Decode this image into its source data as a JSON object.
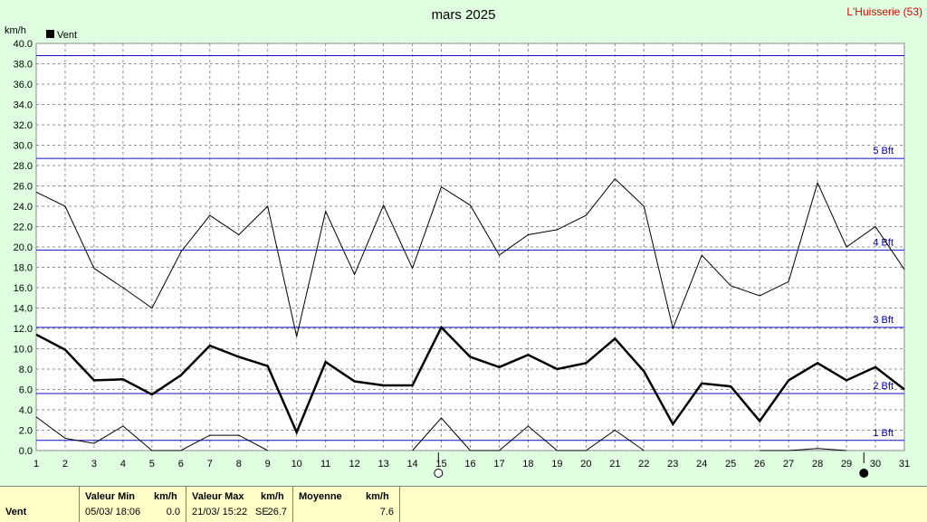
{
  "header": {
    "title": "mars 2025",
    "station": "L'Huisserie (53)",
    "unit": "km/h",
    "legend_label": "Vent",
    "legend_color": "#000000"
  },
  "chart_data": {
    "type": "line",
    "title": "mars 2025",
    "ylabel": "km/h",
    "ylim": [
      0,
      40
    ],
    "yticks": [
      "0.0",
      "2.0",
      "4.0",
      "6.0",
      "8.0",
      "10.0",
      "12.0",
      "14.0",
      "16.0",
      "18.0",
      "20.0",
      "22.0",
      "24.0",
      "26.0",
      "28.0",
      "30.0",
      "32.0",
      "34.0",
      "36.0",
      "38.0",
      "40.0"
    ],
    "x": [
      1,
      2,
      3,
      4,
      5,
      6,
      7,
      8,
      9,
      10,
      11,
      12,
      13,
      14,
      15,
      16,
      17,
      18,
      19,
      20,
      21,
      22,
      23,
      24,
      25,
      26,
      27,
      28,
      29,
      30,
      31
    ],
    "grid": true,
    "legend": "top-left",
    "series": [
      {
        "role": "max",
        "color": "#000000",
        "width": 1,
        "values": [
          25.4,
          24.0,
          17.9,
          16.0,
          14.0,
          19.5,
          23.1,
          21.2,
          24.0,
          11.2,
          23.5,
          17.3,
          24.1,
          17.9,
          25.9,
          24.1,
          19.2,
          21.2,
          21.7,
          23.1,
          26.7,
          24.0,
          12.0,
          19.2,
          16.2,
          15.2,
          16.6,
          26.3,
          20.0,
          22.0,
          17.8
        ]
      },
      {
        "role": "mean",
        "name": "Vent",
        "color": "#000000",
        "width": 2.5,
        "values": [
          11.4,
          9.9,
          6.9,
          7.0,
          5.5,
          7.4,
          10.3,
          9.2,
          8.3,
          1.8,
          8.7,
          6.8,
          6.4,
          6.4,
          12.1,
          9.2,
          8.2,
          9.4,
          8.0,
          8.6,
          11.0,
          7.8,
          2.6,
          6.6,
          6.3,
          2.9,
          6.9,
          8.6,
          6.9,
          8.2,
          6.0
        ]
      },
      {
        "role": "min",
        "color": "#000000",
        "width": 1,
        "values": [
          3.3,
          1.2,
          0.7,
          2.4,
          0.0,
          0.0,
          1.5,
          1.5,
          0.0,
          null,
          null,
          null,
          null,
          0.0,
          3.2,
          0.0,
          0.0,
          2.4,
          0.0,
          0.0,
          2.0,
          0.0,
          null,
          null,
          null,
          0.0,
          0.0,
          0.2,
          0.0,
          null,
          null
        ]
      }
    ],
    "beaufort_lines": [
      {
        "value": 1.0,
        "label": "1 Bft"
      },
      {
        "value": 5.6,
        "label": "2 Bft"
      },
      {
        "value": 12.1,
        "label": "3 Bft"
      },
      {
        "value": 19.7,
        "label": "4 Bft"
      },
      {
        "value": 28.7,
        "label": "5 Bft"
      },
      {
        "value": 38.8,
        "label": ""
      }
    ],
    "moon_phases": [
      {
        "day": 14.9,
        "phase": "full"
      },
      {
        "day": 29.6,
        "phase": "new"
      }
    ]
  },
  "stats": {
    "row_label": "Vent",
    "min": {
      "header": "Valeur Min",
      "unit": "km/h",
      "datetime": "05/03/  18:06",
      "value": "0.0"
    },
    "max": {
      "header": "Valeur Max",
      "unit": "km/h",
      "datetime": "21/03/  15:22",
      "dir": "SE",
      "value": "26.7"
    },
    "mean": {
      "header": "Moyenne",
      "unit": "km/h",
      "value": "7.6"
    }
  }
}
